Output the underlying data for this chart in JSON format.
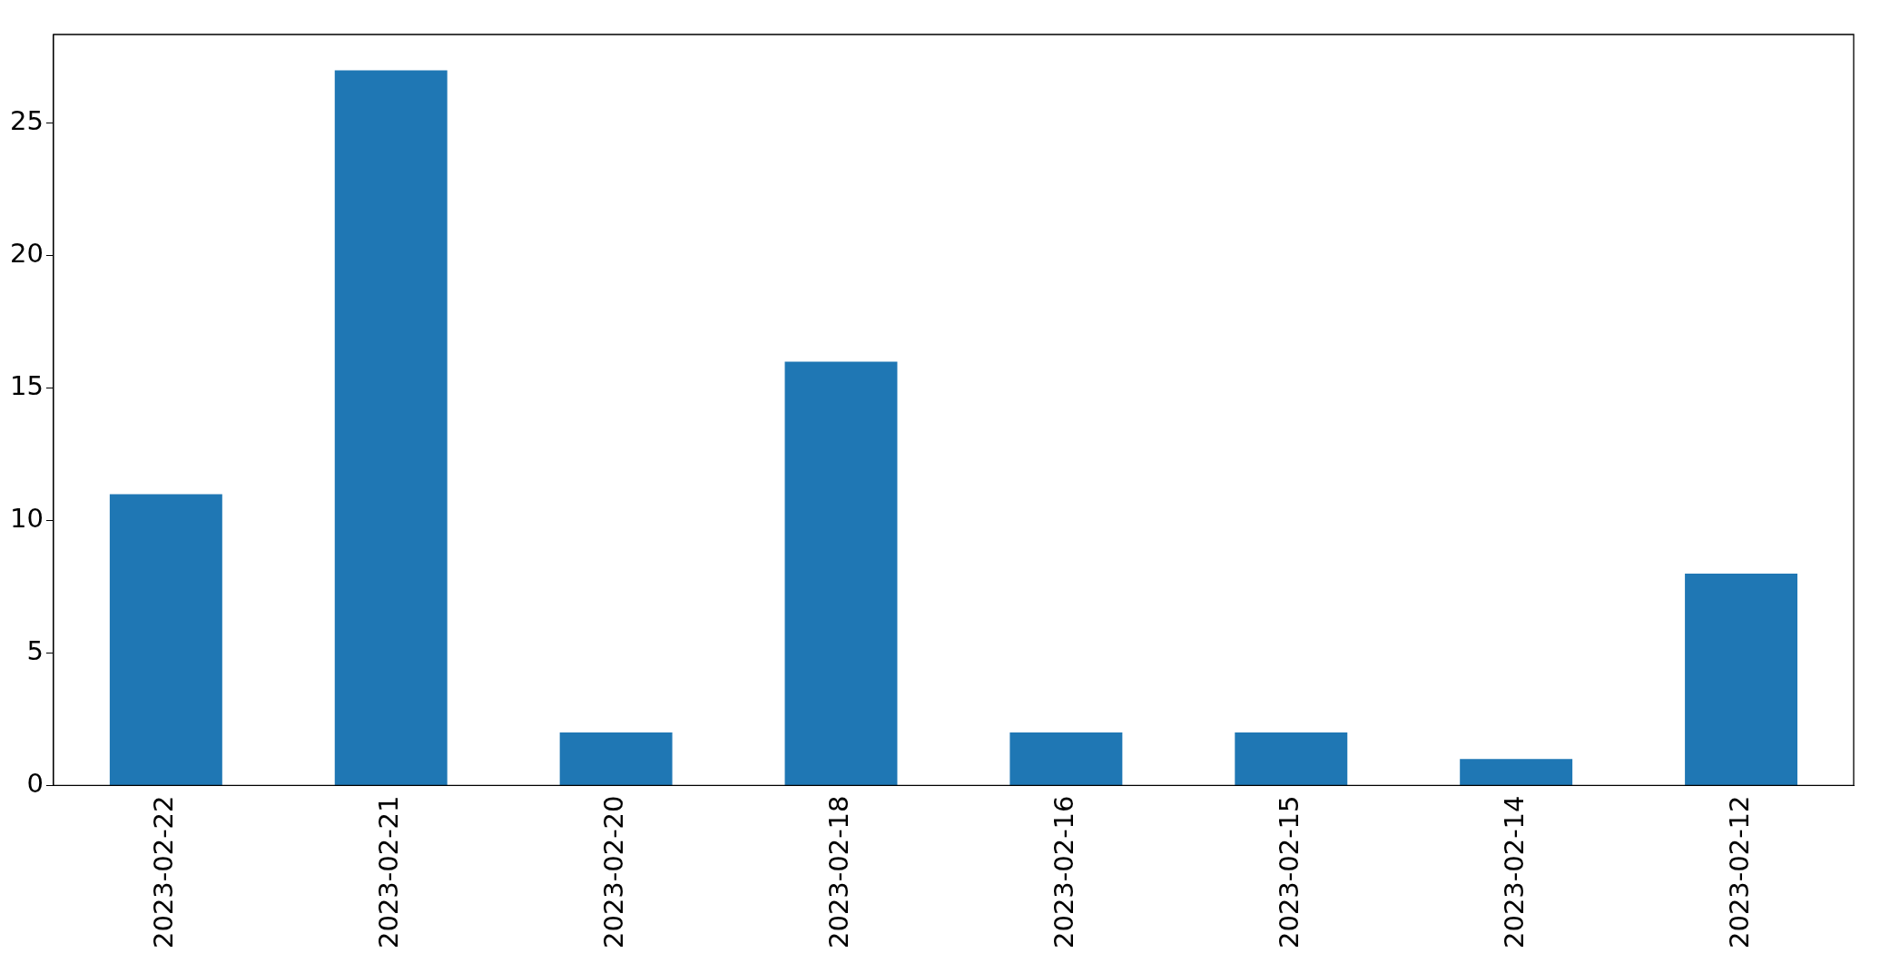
{
  "chart_data": {
    "type": "bar",
    "categories": [
      "2023-02-22",
      "2023-02-21",
      "2023-02-20",
      "2023-02-18",
      "2023-02-16",
      "2023-02-15",
      "2023-02-14",
      "2023-02-12"
    ],
    "values": [
      11,
      27,
      2,
      16,
      2,
      2,
      1,
      8
    ],
    "color": "#1f77b4",
    "ylim": [
      0,
      28.35
    ],
    "yticks": [
      0,
      5,
      10,
      15,
      20,
      25
    ],
    "grid": false,
    "legend": false
  }
}
